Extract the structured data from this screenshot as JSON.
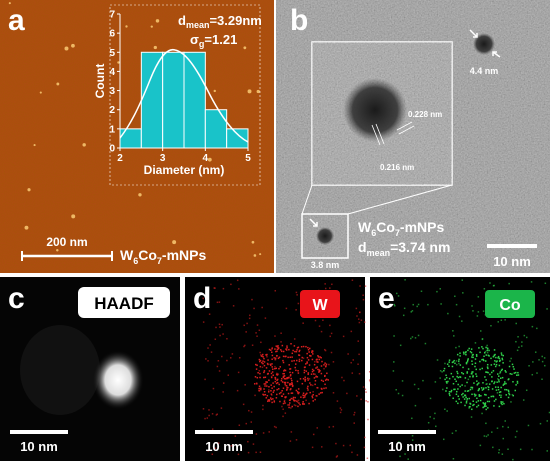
{
  "chart_data": {
    "type": "histogram",
    "bins": [
      2,
      2.5,
      3,
      3.5,
      4,
      4.5,
      5
    ],
    "values": [
      1,
      5,
      5,
      5,
      2,
      1
    ],
    "color": "#19c3c9",
    "xlim": [
      2,
      5
    ],
    "ylim": [
      0,
      7
    ],
    "xticks": [
      2,
      3,
      4,
      5
    ],
    "yticks": [
      0,
      1,
      2,
      3,
      4,
      5,
      6,
      7
    ],
    "xlabel": "Diameter (nm)",
    "ylabel": "Count"
  },
  "panel_a": {
    "letter": "a",
    "mean_label": [
      "d",
      "mean",
      "=3.29nm"
    ],
    "sigma_label": [
      "σ",
      "g",
      "=1.21"
    ],
    "scale_bar": "200 nm",
    "sample": [
      "W",
      "6",
      "Co",
      "7",
      "-mNPs"
    ]
  },
  "panel_b": {
    "letter": "b",
    "particle_size": "4.4 nm",
    "spacing_1": "0.228 nm",
    "spacing_2": "0.216 nm",
    "inset_size": "3.8 nm",
    "sample": [
      "W",
      "6",
      "Co",
      "7",
      "-mNPs"
    ],
    "mean_label": [
      "d",
      "mean",
      "=3.74 nm"
    ],
    "scale_bar": "10 nm"
  },
  "panel_c": {
    "letter": "c",
    "signal": "HAADF",
    "scale_bar": "10 nm"
  },
  "panel_d": {
    "letter": "d",
    "signal": "W",
    "scale_bar": "10 nm"
  },
  "panel_e": {
    "letter": "e",
    "signal": "Co",
    "scale_bar": "10 nm"
  }
}
